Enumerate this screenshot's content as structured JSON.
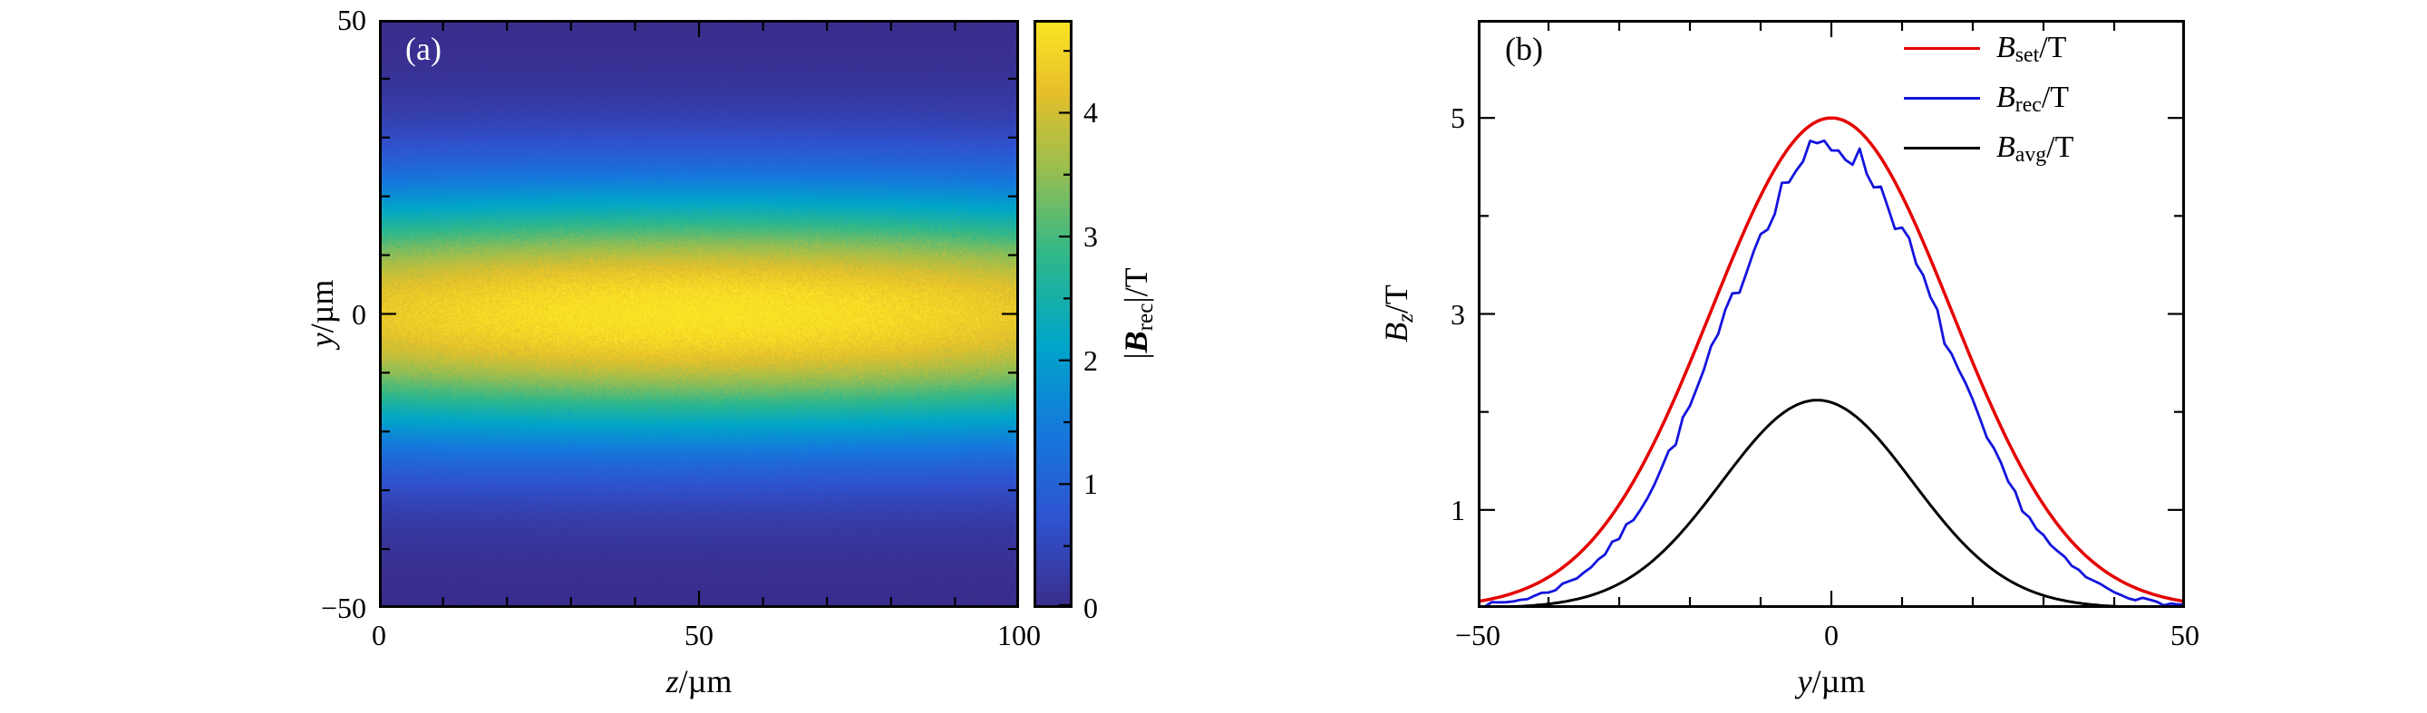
{
  "figure": {
    "background": "#ffffff"
  },
  "chart_data": [
    {
      "type": "heatmap",
      "panel": "(a)",
      "xlabel_var": "z",
      "xlabel_rest": "/µm",
      "ylabel_var": "y",
      "ylabel_rest": "/µm",
      "x_range": [
        0,
        100
      ],
      "y_range": [
        -50,
        50
      ],
      "x_ticks": [
        0,
        50,
        100
      ],
      "y_ticks": [
        -50,
        0,
        50
      ],
      "x_minor_step": 10,
      "y_minor_step": 10,
      "model": {
        "kind": "gaussian2d",
        "amplitude": 4.75,
        "center_z": 50,
        "sigma_z": 110,
        "center_y": 0,
        "sigma_y": 15,
        "noise_rel": 0.05,
        "noise_abs": 0.02,
        "seed": 42
      },
      "sampled_profile": {
        "y": [
          -50,
          -40,
          -30,
          -25,
          -20,
          -15,
          -10,
          -5,
          0,
          5,
          10,
          15,
          20,
          25,
          30,
          40,
          50
        ],
        "value_at_z50": [
          0.02,
          0.14,
          0.64,
          1.18,
          1.95,
          2.88,
          3.81,
          4.49,
          4.75,
          4.49,
          3.81,
          2.88,
          1.95,
          1.18,
          0.64,
          0.14,
          0.02
        ]
      },
      "colormap_stops": [
        {
          "t": 0.0,
          "c": "#3a2d8c"
        },
        {
          "t": 0.15,
          "c": "#2f53d0"
        },
        {
          "t": 0.3,
          "c": "#1579dc"
        },
        {
          "t": 0.45,
          "c": "#00a6c9"
        },
        {
          "t": 0.6,
          "c": "#30b88a"
        },
        {
          "t": 0.75,
          "c": "#9bbe4f"
        },
        {
          "t": 0.88,
          "c": "#e7c02a"
        },
        {
          "t": 1.0,
          "c": "#fce525"
        }
      ],
      "colorbar": {
        "label_pre": "|",
        "label_var": "B",
        "label_sub": "rec",
        "label_post": "|/T",
        "ticks": [
          0,
          1,
          2,
          3,
          4
        ],
        "range": [
          0,
          4.75
        ],
        "minor_step": 0.5
      }
    },
    {
      "type": "line",
      "panel": "(b)",
      "xlabel_var": "y",
      "xlabel_rest": "/µm",
      "ylabel_var": "B",
      "ylabel_sub": "z",
      "ylabel_post": "/T",
      "x_range": [
        -50,
        50
      ],
      "y_range": [
        0,
        6
      ],
      "x_ticks": [
        -50,
        0,
        50
      ],
      "y_ticks": [
        1,
        3,
        5
      ],
      "x_minor_step": 10,
      "y_minor_step": 1,
      "series": [
        {
          "name_var": "B",
          "name_sub": "set",
          "name_post": "/T",
          "color": "#e50000",
          "model": {
            "kind": "gaussian",
            "amplitude": 5.0,
            "center": 0,
            "sigma": 17,
            "noise": 0,
            "seed": 1
          },
          "stroke_width": 3.5,
          "sample_step": 0.5,
          "sampled": {
            "x": [
              -50,
              -40,
              -30,
              -20,
              -10,
              0,
              10,
              20,
              30,
              40,
              50
            ],
            "y": [
              0.07,
              0.31,
              1.05,
              2.5,
              4.21,
              5.0,
              4.21,
              2.5,
              1.05,
              0.31,
              0.07
            ]
          }
        },
        {
          "name_var": "B",
          "name_sub": "rec",
          "name_post": "/T",
          "color": "#1414dd",
          "model": {
            "kind": "gaussian",
            "amplitude": 4.72,
            "center": 0,
            "sigma": 15.5,
            "noise_abs": 0.02,
            "noise_rel": 0.028,
            "seed": 7
          },
          "stroke_width": 2.8,
          "sample_step": 1.0,
          "sampled": {
            "x": [
              -50,
              -40,
              -30,
              -20,
              -10,
              0,
              10,
              20,
              30,
              40,
              50
            ],
            "y": [
              0.03,
              0.17,
              0.72,
              2.05,
              3.83,
              4.72,
              3.83,
              2.05,
              0.72,
              0.17,
              0.03
            ]
          }
        },
        {
          "name_var": "B",
          "name_sub": "avg",
          "name_post": "/T",
          "color": "#000000",
          "model": {
            "kind": "gaussian",
            "amplitude": 2.12,
            "center": -2,
            "sigma": 13.5,
            "noise": 0,
            "seed": 2
          },
          "stroke_width": 3.0,
          "sample_step": 0.5,
          "sampled": {
            "x": [
              -50,
              -40,
              -30,
              -20,
              -10,
              0,
              10,
              20,
              30,
              40,
              50
            ],
            "y": [
              0.004,
              0.04,
              0.25,
              0.87,
              1.78,
              2.1,
              1.43,
              0.56,
              0.13,
              0.02,
              0.002
            ]
          }
        }
      ],
      "legend_position": "top-right"
    }
  ]
}
